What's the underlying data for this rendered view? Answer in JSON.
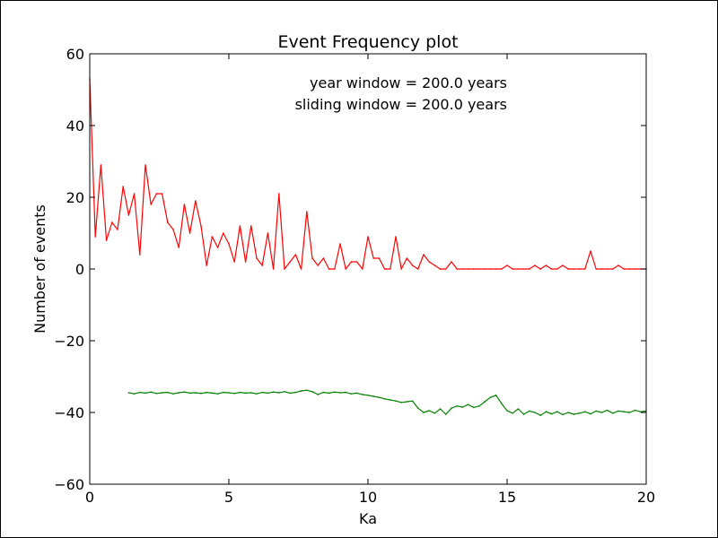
{
  "chart_data": {
    "type": "line",
    "title": "Event Frequency plot",
    "xlabel": "Ka",
    "ylabel": "Number of events",
    "xlim": [
      0,
      20
    ],
    "ylim": [
      -60,
      60
    ],
    "x_ticks": [
      0,
      5,
      10,
      15,
      20
    ],
    "x_tick_labels": [
      "0",
      "5",
      "10",
      "15",
      "20"
    ],
    "y_ticks": [
      60,
      40,
      20,
      0,
      -20,
      -40,
      -60
    ],
    "y_tick_labels": [
      "60",
      "40",
      "20",
      "0",
      "−20",
      "−40",
      "−60"
    ],
    "grid": false,
    "annotations": [
      "year window = 200.0 years",
      "sliding window = 200.0 years"
    ],
    "series": [
      {
        "color": "#ff0000",
        "x": [
          0.0,
          0.2,
          0.4,
          0.6,
          0.8,
          1.0,
          1.2,
          1.4,
          1.6,
          1.8,
          2.0,
          2.2,
          2.4,
          2.6,
          2.8,
          3.0,
          3.2,
          3.4,
          3.6,
          3.8,
          4.0,
          4.2,
          4.4,
          4.6,
          4.8,
          5.0,
          5.2,
          5.4,
          5.6,
          5.8,
          6.0,
          6.2,
          6.4,
          6.6,
          6.8,
          7.0,
          7.2,
          7.4,
          7.6,
          7.8,
          8.0,
          8.2,
          8.4,
          8.6,
          8.8,
          9.0,
          9.2,
          9.4,
          9.6,
          9.8,
          10.0,
          10.2,
          10.4,
          10.6,
          10.8,
          11.0,
          11.2,
          11.4,
          11.6,
          11.8,
          12.0,
          12.2,
          12.4,
          12.6,
          12.8,
          13.0,
          13.2,
          13.4,
          13.6,
          13.8,
          14.0,
          14.2,
          14.4,
          14.6,
          14.8,
          15.0,
          15.2,
          15.4,
          15.6,
          15.8,
          16.0,
          16.2,
          16.4,
          16.6,
          16.8,
          17.0,
          17.2,
          17.4,
          17.6,
          17.8,
          18.0,
          18.2,
          18.4,
          18.6,
          18.8,
          19.0,
          19.2,
          19.4,
          19.6,
          19.8,
          20.0
        ],
        "y": [
          53,
          9,
          29,
          8,
          13,
          11,
          23,
          15,
          21,
          4,
          29,
          18,
          21,
          21,
          13,
          11,
          6,
          18,
          10,
          19,
          12,
          1,
          9,
          6,
          10,
          7,
          2,
          12,
          2,
          12,
          3,
          1,
          10,
          0,
          21,
          0,
          2,
          4,
          0,
          16,
          3,
          1,
          3,
          0,
          0,
          7,
          0,
          2,
          2,
          0,
          9,
          3,
          3,
          0,
          0,
          9,
          0,
          3,
          1,
          0,
          4,
          2,
          1,
          0,
          0,
          2,
          0,
          0,
          0,
          0,
          0,
          0,
          0,
          0,
          0,
          1,
          0,
          0,
          0,
          0,
          1,
          0,
          1,
          0,
          0,
          1,
          0,
          0,
          0,
          0,
          5,
          0,
          0,
          0,
          0,
          1,
          0,
          0,
          0,
          0,
          0
        ]
      },
      {
        "color": "#008000",
        "x": [
          1.4,
          1.6,
          1.8,
          2.0,
          2.2,
          2.4,
          2.6,
          2.8,
          3.0,
          3.2,
          3.4,
          3.6,
          3.8,
          4.0,
          4.2,
          4.4,
          4.6,
          4.8,
          5.0,
          5.2,
          5.4,
          5.6,
          5.8,
          6.0,
          6.2,
          6.4,
          6.6,
          6.8,
          7.0,
          7.2,
          7.4,
          7.6,
          7.8,
          8.0,
          8.2,
          8.4,
          8.6,
          8.8,
          9.0,
          9.2,
          9.4,
          9.6,
          9.8,
          10.0,
          10.2,
          10.4,
          10.6,
          10.8,
          11.0,
          11.2,
          11.4,
          11.6,
          11.8,
          12.0,
          12.2,
          12.4,
          12.6,
          12.8,
          13.0,
          13.2,
          13.4,
          13.6,
          13.8,
          14.0,
          14.2,
          14.4,
          14.6,
          14.8,
          15.0,
          15.2,
          15.4,
          15.6,
          15.8,
          16.0,
          16.2,
          16.4,
          16.6,
          16.8,
          17.0,
          17.2,
          17.4,
          17.6,
          17.8,
          18.0,
          18.2,
          18.4,
          18.6,
          18.8,
          19.0,
          19.2,
          19.4,
          19.6,
          19.8,
          20.0
        ],
        "y": [
          -34.5,
          -34.8,
          -34.4,
          -34.6,
          -34.3,
          -34.7,
          -34.5,
          -34.4,
          -34.8,
          -34.5,
          -34.3,
          -34.6,
          -34.5,
          -34.7,
          -34.4,
          -34.6,
          -34.8,
          -34.4,
          -34.5,
          -34.7,
          -34.4,
          -34.6,
          -34.5,
          -34.8,
          -34.4,
          -34.6,
          -34.3,
          -34.5,
          -34.2,
          -34.6,
          -34.4,
          -34.0,
          -33.8,
          -34.2,
          -35.0,
          -34.4,
          -34.6,
          -34.3,
          -34.5,
          -34.4,
          -34.8,
          -34.6,
          -35.0,
          -35.2,
          -35.5,
          -35.8,
          -36.2,
          -36.5,
          -36.8,
          -37.2,
          -37.0,
          -36.8,
          -38.8,
          -40.0,
          -39.5,
          -40.2,
          -39.0,
          -40.5,
          -38.8,
          -38.2,
          -38.5,
          -37.8,
          -38.6,
          -38.2,
          -37.0,
          -35.8,
          -35.2,
          -37.5,
          -39.5,
          -40.2,
          -39.0,
          -40.5,
          -39.6,
          -40.0,
          -40.8,
          -39.8,
          -40.4,
          -39.8,
          -40.6,
          -40.0,
          -40.5,
          -40.2,
          -39.8,
          -40.4,
          -39.6,
          -40.0,
          -39.4,
          -40.2,
          -39.6,
          -39.8,
          -40.0,
          -39.4,
          -39.8,
          -39.6
        ]
      }
    ]
  }
}
